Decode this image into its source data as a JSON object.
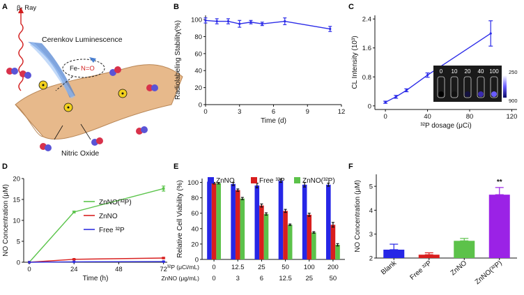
{
  "panels": {
    "A": {
      "letter": "A",
      "labels": {
        "ray": "β- Ray",
        "cerenkov": "Cerenkov Luminescence",
        "fe": "Fe-",
        "no": "N=O",
        "nitric": "Nitric Oxide"
      },
      "colors": {
        "ray": "#d21f1f",
        "cone": "#4a7fd0",
        "membrane": "#e7b98b",
        "no_text": "#d21f1f"
      }
    },
    "B": {
      "letter": "B"
    },
    "C": {
      "letter": "C"
    },
    "D": {
      "letter": "D"
    },
    "E": {
      "letter": "E"
    },
    "F": {
      "letter": "F"
    }
  },
  "chart_data": [
    {
      "panel": "B",
      "type": "line",
      "xlabel": "Time (d)",
      "ylabel": "Radiolabeling Stability(%)",
      "xlim": [
        0,
        12
      ],
      "ylim": [
        0,
        105
      ],
      "xticks": [
        0,
        3,
        6,
        9,
        12
      ],
      "yticks": [
        0,
        20,
        40,
        60,
        80,
        100
      ],
      "color": "#2b2be8",
      "x": [
        0,
        1,
        2,
        3,
        4,
        5,
        7,
        11
      ],
      "y": [
        99,
        98,
        98,
        95,
        97,
        95,
        98,
        89
      ],
      "err": [
        3,
        3,
        3,
        4,
        2,
        2,
        4,
        3
      ]
    },
    {
      "panel": "C",
      "type": "line",
      "xlabel": "³²P dosage (μCi)",
      "ylabel": "CL Intensity (10³)",
      "xlim": [
        -10,
        125
      ],
      "ylim": [
        -0.1,
        2.5
      ],
      "xticks": [
        0,
        40,
        80,
        120
      ],
      "yticks": [
        0,
        0.8,
        1.6,
        2.4
      ],
      "ytick_labels": [
        "0",
        "0.8",
        "1.6",
        "2.4"
      ],
      "color": "#2b2be8",
      "x": [
        0,
        10,
        20,
        40,
        100
      ],
      "y": [
        0.1,
        0.25,
        0.43,
        0.85,
        2.0
      ],
      "err": [
        0.03,
        0.04,
        0.04,
        0.06,
        0.35
      ],
      "inset": {
        "well_labels": [
          "0",
          "10",
          "20",
          "40",
          "100"
        ],
        "colorbar_max": "250",
        "colorbar_min": "900"
      }
    },
    {
      "panel": "D",
      "type": "line",
      "xlabel": "Time (h)",
      "ylabel": "NO Concentration (μM)",
      "xlim": [
        -3,
        74
      ],
      "ylim": [
        0,
        20
      ],
      "xticks": [
        0,
        24,
        48,
        72
      ],
      "yticks": [
        0,
        5,
        10,
        15,
        20
      ],
      "x": [
        0,
        24,
        72
      ],
      "series": [
        {
          "name": "ZnNO(³²P)",
          "color": "#5bc44b",
          "values": [
            0,
            12.0,
            17.6
          ],
          "err": [
            0,
            0.2,
            0.6
          ]
        },
        {
          "name": "ZnNO",
          "color": "#d82020",
          "values": [
            0,
            0.7,
            1.0
          ],
          "err": [
            0,
            0.1,
            0.15
          ]
        },
        {
          "name": "Free ³²P",
          "color": "#3030e0",
          "values": [
            0,
            0.1,
            0.15
          ],
          "err": [
            0,
            0.05,
            0.05
          ]
        }
      ],
      "legend": [
        "ZnNO(³²P)",
        "ZnNO",
        "Free ³²P"
      ]
    },
    {
      "panel": "E",
      "type": "bar",
      "ylabel": "Relative Cell Viability (%)",
      "ylim": [
        0,
        105
      ],
      "yticks": [
        0,
        20,
        40,
        60,
        80,
        100
      ],
      "row1_label": "³²P (μCi/mL)",
      "row2_label": "ZnNO (μg/mL)",
      "categories": [
        "0",
        "12.5",
        "25",
        "50",
        "100",
        "200"
      ],
      "categories2": [
        "0",
        "3",
        "6",
        "12.5",
        "25",
        "50"
      ],
      "series": [
        {
          "name": "ZnNO",
          "color": "#2626e6",
          "values": [
            101,
            98,
            96,
            102,
            97,
            97
          ],
          "err": [
            1.5,
            2,
            3,
            2,
            3,
            2
          ]
        },
        {
          "name": "Free ³²P",
          "color": "#d91e1e",
          "values": [
            99,
            90,
            70,
            63,
            58,
            45
          ],
          "err": [
            1,
            1.5,
            2,
            2,
            2,
            3
          ]
        },
        {
          "name": "ZnNO(³²P)",
          "color": "#5cc24a",
          "values": [
            99,
            79,
            59,
            45,
            35,
            19
          ],
          "err": [
            1,
            1.5,
            1.5,
            1,
            1,
            1.5
          ]
        }
      ],
      "legend": [
        "ZnNO",
        "Free ³²P",
        "ZnNO(³²P)"
      ]
    },
    {
      "panel": "F",
      "type": "bar",
      "ylabel": "NO Concentration (μM)",
      "ylim": [
        2,
        5.5
      ],
      "yticks": [
        2,
        3,
        4,
        5
      ],
      "categories": [
        "Blank",
        "Free ³²P",
        "ZnNO",
        "ZnNO(³²P)"
      ],
      "values": [
        2.35,
        2.14,
        2.72,
        4.65
      ],
      "err": [
        0.23,
        0.08,
        0.1,
        0.3
      ],
      "colors": [
        "#2626e6",
        "#d91e1e",
        "#5cc24a",
        "#9b22e6"
      ],
      "annotation": "**"
    }
  ]
}
